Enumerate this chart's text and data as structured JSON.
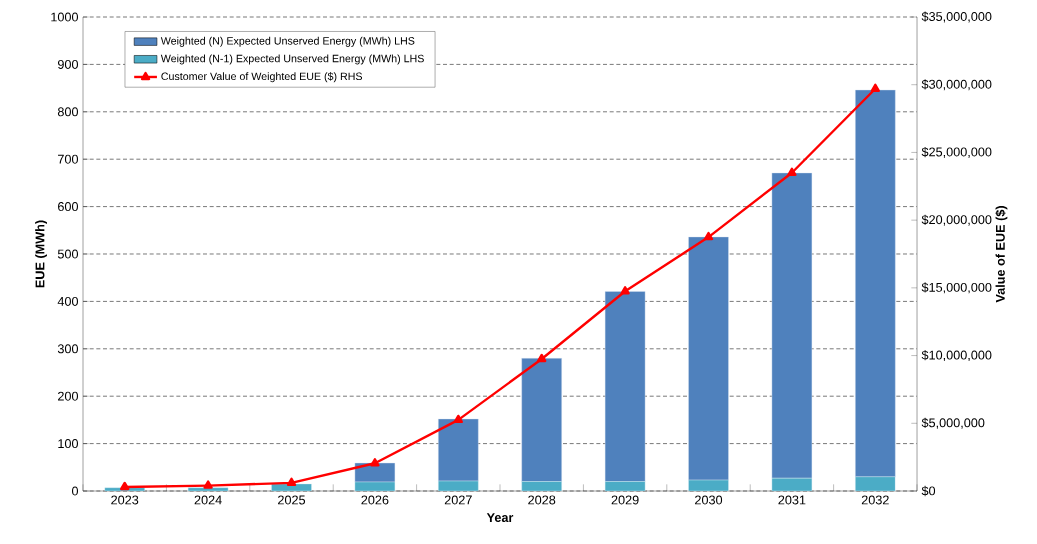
{
  "chart_data": {
    "type": "bar",
    "stacked": true,
    "xlabel": "Year",
    "ylabel": "EUE (MWh)",
    "y2label": "Value of EUE ($)",
    "categories": [
      "2023",
      "2024",
      "2025",
      "2026",
      "2027",
      "2028",
      "2029",
      "2030",
      "2031",
      "2032"
    ],
    "series": [
      {
        "name": "Weighted (N-1) Expected Unserved Energy (MWh) LHS",
        "color": "#4bacc6",
        "values": [
          7,
          7,
          15,
          19,
          21,
          20,
          20,
          23,
          27,
          30
        ]
      },
      {
        "name": "Weighted (N) Expected Unserved Energy (MWh) LHS",
        "color": "#4f81bd",
        "values": [
          0,
          0,
          0,
          40,
          131,
          260,
          401,
          513,
          644,
          816
        ]
      },
      {
        "name": "Customer Value of Weighted EUE ($) RHS",
        "type": "line",
        "axis": "y2",
        "marker": "triangle",
        "color": "#ff0000",
        "values": [
          300000,
          400000,
          600000,
          2050000,
          5250000,
          9750000,
          14750000,
          18750000,
          23500000,
          29700000
        ]
      }
    ],
    "ylim": [
      0,
      1000
    ],
    "yticks": [
      0,
      100,
      200,
      300,
      400,
      500,
      600,
      700,
      800,
      900,
      1000
    ],
    "y2lim": [
      0,
      35000000
    ],
    "y2ticks": [
      {
        "value": 0,
        "label": "$0"
      },
      {
        "value": 5000000,
        "label": "$5,000,000"
      },
      {
        "value": 10000000,
        "label": "$10,000,000"
      },
      {
        "value": 15000000,
        "label": "$15,000,000"
      },
      {
        "value": 20000000,
        "label": "$20,000,000"
      },
      {
        "value": 25000000,
        "label": "$25,000,000"
      },
      {
        "value": 30000000,
        "label": "$30,000,000"
      },
      {
        "value": 35000000,
        "label": "$35,000,000"
      }
    ],
    "grid": "y",
    "legend": "top left"
  }
}
